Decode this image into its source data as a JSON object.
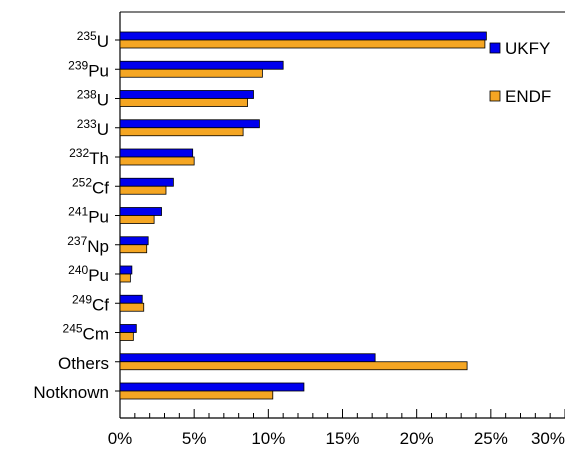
{
  "chart_data": {
    "type": "bar",
    "orientation": "horizontal",
    "categories": [
      {
        "sup": "235",
        "base": "U"
      },
      {
        "sup": "239",
        "base": "Pu"
      },
      {
        "sup": "238",
        "base": "U"
      },
      {
        "sup": "233",
        "base": "U"
      },
      {
        "sup": "232",
        "base": "Th"
      },
      {
        "sup": "252",
        "base": "Cf"
      },
      {
        "sup": "241",
        "base": "Pu"
      },
      {
        "sup": "237",
        "base": "Np"
      },
      {
        "sup": "240",
        "base": "Pu"
      },
      {
        "sup": "249",
        "base": "Cf"
      },
      {
        "sup": "245",
        "base": "Cm"
      },
      {
        "sup": "",
        "base": "Others"
      },
      {
        "sup": "",
        "base": "Notknown"
      }
    ],
    "series": [
      {
        "name": "UKFY",
        "color": "#0000ee",
        "values": [
          24.7,
          11.0,
          9.0,
          9.4,
          4.9,
          3.6,
          2.8,
          1.9,
          0.8,
          1.5,
          1.1,
          17.2,
          12.4
        ]
      },
      {
        "name": "ENDF",
        "color": "#f5a623",
        "values": [
          24.6,
          9.6,
          8.6,
          8.3,
          5.0,
          3.1,
          2.3,
          1.8,
          0.7,
          1.6,
          0.9,
          23.4,
          10.3
        ]
      }
    ],
    "xlim": [
      0,
      30
    ],
    "xticks": [
      "0%",
      "5%",
      "10%",
      "15%",
      "20%",
      "25%",
      "30%"
    ],
    "xlabel": "",
    "ylabel": "",
    "title": "",
    "grid": false,
    "legend_position": "top-right"
  }
}
